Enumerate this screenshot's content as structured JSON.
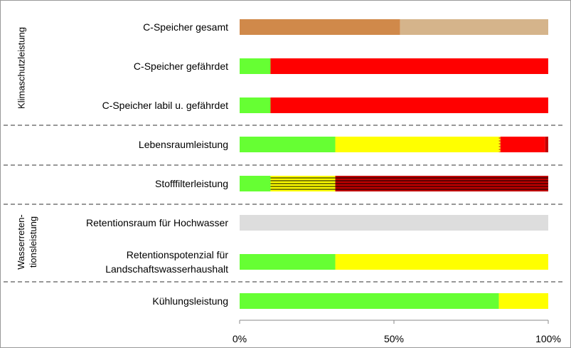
{
  "chart_data": {
    "type": "stacked-barh",
    "categories": [
      "C-Speicher gesamt",
      "C-Speicher gefährdet",
      "C-Speicher labil u. gefährdet",
      "Lebensraumleistung",
      "Stofffilterleistung",
      "Retentionsraum für Hochwasser",
      "Retentionspotenzial für\nLandschaftswasserhaushalt",
      "Kühlungsleistung"
    ],
    "groups": [
      "Klimaschutzleistung",
      "Wasserreten-\ntionsleistung"
    ],
    "series": [
      {
        "color": "#66ff33",
        "values": [
          null,
          10,
          10,
          31,
          10,
          null,
          31,
          84
        ]
      },
      {
        "color": "#d0894a",
        "values": [
          52,
          null,
          null,
          null,
          null,
          null,
          null,
          null
        ]
      },
      {
        "color": "#d5b48b",
        "values": [
          48,
          null,
          null,
          null,
          null,
          null,
          null,
          null
        ]
      },
      {
        "color": "#ffff00",
        "values": [
          null,
          null,
          null,
          53,
          null,
          null,
          69,
          16
        ]
      },
      {
        "color": "#ffff00",
        "hatch": "#000000",
        "values": [
          null,
          null,
          null,
          null,
          21,
          null,
          null,
          null
        ]
      },
      {
        "color": "#ffff00",
        "hatch": "#c00000",
        "values": [
          null,
          null,
          null,
          0.5,
          null,
          null,
          null,
          null
        ]
      },
      {
        "color": "#ff0000",
        "values": [
          null,
          90,
          90,
          14.5,
          null,
          null,
          null,
          null
        ]
      },
      {
        "color": "#c00000",
        "values": [
          null,
          null,
          null,
          1,
          null,
          null,
          null,
          null
        ]
      },
      {
        "color": "#c00000",
        "hatch": "#000000",
        "values": [
          null,
          null,
          null,
          null,
          69,
          null,
          null,
          null
        ]
      },
      {
        "color": "#dddddd",
        "values": [
          null,
          null,
          null,
          null,
          null,
          100,
          null,
          null
        ]
      }
    ],
    "xlim": [
      0,
      100
    ],
    "xticks": [
      {
        "value": 0,
        "label": "0%"
      },
      {
        "value": 50,
        "label": "50%"
      },
      {
        "value": 100,
        "label": "100%"
      }
    ]
  }
}
